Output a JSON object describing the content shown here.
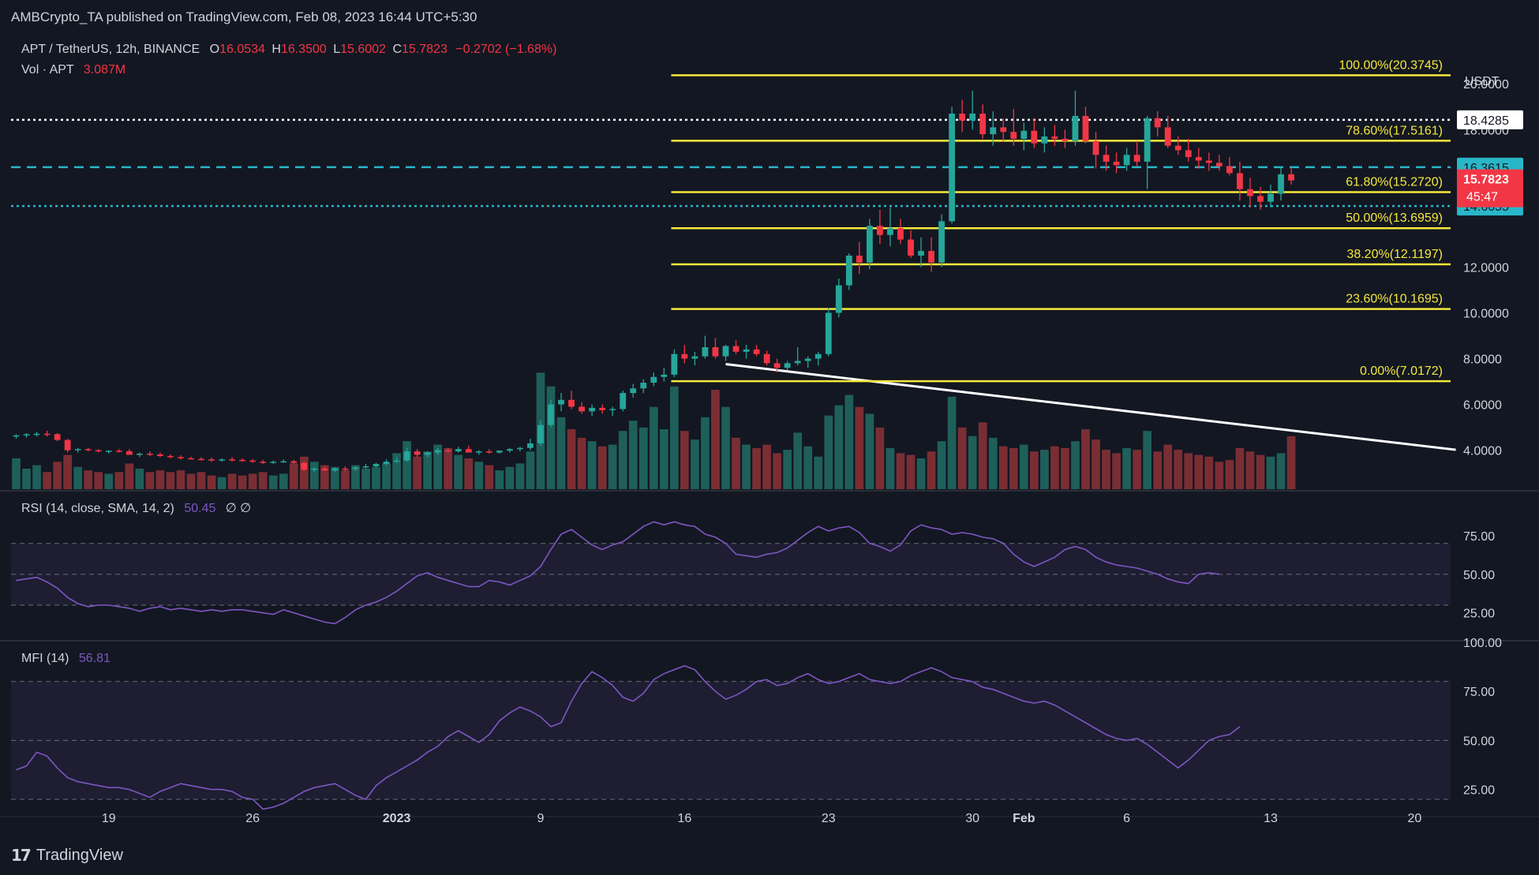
{
  "header": {
    "published": "AMBCrypto_TA published on TradingView.com, Feb 08, 2023 16:44 UTC+5:30"
  },
  "footer": {
    "brand": "TradingView"
  },
  "legend": {
    "symbol": "APT / TetherUS, 12h, BINANCE",
    "o_label": "O",
    "o_value": "16.0534",
    "h_label": "H",
    "h_value": "16.3500",
    "l_label": "L",
    "l_value": "15.6002",
    "c_label": "C",
    "c_value": "15.7823",
    "change": "−0.2702 (−1.68%)",
    "vol_label": "Vol · APT",
    "vol_value": "3.087M",
    "rsi_label": "RSI (14, close, SMA, 14, 2)",
    "rsi_value": "50.45",
    "rsi_extra": "∅  ∅",
    "mfi_label": "MFI (14)",
    "mfi_value": "56.81"
  },
  "colors": {
    "background": "#131722",
    "up": "#26a69a",
    "down": "#f23645",
    "fib": "#f5e83b",
    "cyan": "#29b6c8",
    "osc": "#7e57c2",
    "text": "#d1d4dc"
  },
  "chart_data": [
    {
      "type": "candlestick",
      "title": "APT / TetherUS, 12h, BINANCE",
      "ylabel": "USDT",
      "ylim": [
        2.3,
        21.8
      ],
      "price_axis_ticks": [
        "20.0000",
        "18.0000",
        "12.0000",
        "10.0000",
        "8.0000",
        "6.0000",
        "4.0000"
      ],
      "price_axis_values": [
        20,
        18,
        12,
        10,
        8,
        6,
        4
      ],
      "time_ticks": [
        "19",
        "26",
        "2023",
        "9",
        "16",
        "23",
        "30",
        "Feb",
        "6",
        "13",
        "20"
      ],
      "time_tick_index": [
        9,
        23,
        37,
        51,
        65,
        79,
        93,
        98,
        108,
        122,
        136
      ],
      "x_range": [
        -0.5,
        139.5
      ],
      "candles": [
        [
          4.6,
          4.7,
          4.5,
          4.65,
          1.8
        ],
        [
          4.65,
          4.75,
          4.55,
          4.7,
          1.2
        ],
        [
          4.7,
          4.8,
          4.6,
          4.72,
          1.4
        ],
        [
          4.72,
          4.85,
          4.6,
          4.7,
          1.0
        ],
        [
          4.7,
          4.75,
          4.4,
          4.45,
          1.6
        ],
        [
          4.45,
          4.5,
          3.9,
          4.0,
          2.0
        ],
        [
          4.0,
          4.1,
          3.9,
          4.05,
          1.3
        ],
        [
          4.05,
          4.1,
          3.95,
          4.0,
          1.1
        ],
        [
          4.0,
          4.05,
          3.9,
          3.95,
          1.0
        ],
        [
          3.95,
          4.0,
          3.85,
          3.98,
          0.9
        ],
        [
          3.98,
          4.05,
          3.9,
          3.96,
          1.0
        ],
        [
          3.96,
          4.05,
          3.85,
          3.8,
          1.5
        ],
        [
          3.8,
          3.9,
          3.7,
          3.85,
          1.2
        ],
        [
          3.85,
          3.95,
          3.75,
          3.82,
          1.0
        ],
        [
          3.82,
          3.9,
          3.7,
          3.75,
          1.1
        ],
        [
          3.75,
          3.82,
          3.65,
          3.7,
          1.0
        ],
        [
          3.7,
          3.78,
          3.6,
          3.65,
          1.1
        ],
        [
          3.65,
          3.72,
          3.6,
          3.62,
          0.9
        ],
        [
          3.62,
          3.7,
          3.55,
          3.6,
          1.0
        ],
        [
          3.6,
          3.68,
          3.5,
          3.55,
          0.8
        ],
        [
          3.55,
          3.65,
          3.5,
          3.6,
          0.7
        ],
        [
          3.6,
          3.7,
          3.52,
          3.58,
          0.9
        ],
        [
          3.58,
          3.65,
          3.5,
          3.55,
          0.8
        ],
        [
          3.55,
          3.62,
          3.45,
          3.5,
          0.9
        ],
        [
          3.5,
          3.58,
          3.4,
          3.45,
          1.0
        ],
        [
          3.45,
          3.55,
          3.4,
          3.5,
          0.8
        ],
        [
          3.5,
          3.6,
          3.45,
          3.52,
          0.9
        ],
        [
          3.52,
          3.58,
          3.4,
          3.45,
          1.5
        ],
        [
          3.45,
          3.5,
          3.1,
          3.15,
          1.9
        ],
        [
          3.15,
          3.25,
          3.05,
          3.2,
          1.6
        ],
        [
          3.2,
          3.3,
          3.1,
          3.12,
          1.4
        ],
        [
          3.12,
          3.25,
          3.05,
          3.2,
          1.3
        ],
        [
          3.2,
          3.3,
          3.1,
          3.18,
          1.1
        ],
        [
          3.18,
          3.3,
          3.1,
          3.25,
          1.4
        ],
        [
          3.25,
          3.4,
          3.2,
          3.3,
          1.2
        ],
        [
          3.3,
          3.45,
          3.25,
          3.4,
          1.3
        ],
        [
          3.4,
          3.6,
          3.35,
          3.5,
          1.5
        ],
        [
          3.5,
          3.7,
          3.45,
          3.55,
          2.1
        ],
        [
          3.55,
          4.1,
          3.5,
          3.95,
          2.8
        ],
        [
          3.95,
          4.05,
          3.7,
          3.8,
          1.9
        ],
        [
          3.8,
          3.95,
          3.7,
          3.9,
          2.2
        ],
        [
          3.9,
          4.1,
          3.8,
          4.0,
          2.6
        ],
        [
          4.0,
          4.1,
          3.9,
          3.95,
          2.4
        ],
        [
          3.95,
          4.15,
          3.9,
          4.05,
          2.0
        ],
        [
          4.05,
          4.2,
          3.9,
          3.9,
          1.8
        ],
        [
          3.9,
          4.0,
          3.8,
          3.95,
          1.6
        ],
        [
          3.95,
          4.05,
          3.85,
          3.9,
          1.4
        ],
        [
          3.9,
          4.0,
          3.85,
          3.98,
          1.1
        ],
        [
          3.98,
          4.1,
          3.9,
          4.05,
          1.3
        ],
        [
          4.05,
          4.15,
          3.95,
          4.1,
          1.5
        ],
        [
          4.1,
          4.5,
          4.0,
          4.3,
          2.2
        ],
        [
          4.3,
          5.3,
          4.2,
          5.1,
          6.8
        ],
        [
          5.1,
          6.2,
          5.0,
          6.0,
          6.0
        ],
        [
          6.0,
          6.5,
          5.7,
          6.2,
          4.2
        ],
        [
          6.2,
          6.6,
          5.8,
          5.9,
          3.5
        ],
        [
          5.9,
          6.1,
          5.6,
          5.7,
          3.0
        ],
        [
          5.7,
          6.0,
          5.5,
          5.85,
          2.8
        ],
        [
          5.85,
          6.0,
          5.6,
          5.75,
          2.5
        ],
        [
          5.75,
          5.9,
          5.5,
          5.8,
          2.6
        ],
        [
          5.8,
          6.6,
          5.7,
          6.5,
          3.4
        ],
        [
          6.5,
          6.9,
          6.3,
          6.7,
          4.0
        ],
        [
          6.7,
          7.1,
          6.5,
          6.95,
          3.6
        ],
        [
          6.95,
          7.4,
          6.8,
          7.2,
          4.8
        ],
        [
          7.2,
          7.6,
          7.0,
          7.3,
          3.5
        ],
        [
          7.3,
          8.4,
          7.2,
          8.2,
          6.0
        ],
        [
          8.2,
          8.6,
          7.8,
          8.0,
          3.4
        ],
        [
          8.0,
          8.3,
          7.7,
          8.1,
          2.9
        ],
        [
          8.1,
          9.0,
          8.0,
          8.5,
          4.2
        ],
        [
          8.5,
          8.9,
          8.0,
          8.1,
          5.8
        ],
        [
          8.1,
          8.6,
          7.9,
          8.55,
          4.8
        ],
        [
          8.55,
          8.8,
          8.2,
          8.3,
          3.0
        ],
        [
          8.3,
          8.6,
          8.0,
          8.4,
          2.6
        ],
        [
          8.4,
          8.6,
          8.1,
          8.2,
          2.4
        ],
        [
          8.2,
          8.35,
          7.7,
          7.8,
          2.6
        ],
        [
          7.8,
          8.0,
          7.4,
          7.6,
          2.1
        ],
        [
          7.6,
          7.9,
          7.5,
          7.8,
          2.3
        ],
        [
          7.8,
          8.5,
          7.7,
          7.9,
          3.3
        ],
        [
          7.9,
          8.1,
          7.6,
          8.0,
          2.5
        ],
        [
          8.0,
          8.3,
          7.7,
          8.2,
          1.9
        ],
        [
          8.2,
          10.2,
          8.1,
          10.0,
          4.3
        ],
        [
          10.0,
          11.5,
          9.8,
          11.2,
          4.9
        ],
        [
          11.2,
          12.6,
          11.0,
          12.5,
          5.5
        ],
        [
          12.5,
          13.1,
          11.7,
          12.2,
          4.8
        ],
        [
          12.2,
          14.1,
          11.9,
          13.8,
          4.4
        ],
        [
          13.8,
          14.5,
          13.0,
          13.4,
          3.6
        ],
        [
          13.4,
          14.6,
          12.9,
          13.7,
          2.4
        ],
        [
          13.7,
          14.1,
          13.0,
          13.2,
          2.1
        ],
        [
          13.2,
          13.6,
          12.4,
          12.5,
          2.0
        ],
        [
          12.5,
          13.3,
          12.0,
          12.7,
          1.8
        ],
        [
          12.7,
          13.3,
          11.8,
          12.2,
          2.2
        ],
        [
          12.2,
          14.3,
          12.0,
          14.0,
          2.8
        ],
        [
          14.0,
          19.0,
          13.9,
          18.7,
          5.4
        ],
        [
          18.7,
          19.3,
          17.9,
          18.4,
          3.6
        ],
        [
          18.4,
          19.7,
          18.0,
          18.7,
          3.1
        ],
        [
          18.7,
          19.1,
          17.6,
          17.8,
          3.9
        ],
        [
          17.8,
          18.8,
          17.3,
          18.1,
          3.0
        ],
        [
          18.1,
          18.5,
          17.5,
          17.9,
          2.5
        ],
        [
          17.9,
          18.9,
          17.3,
          17.6,
          2.4
        ],
        [
          17.6,
          18.3,
          17.1,
          17.95,
          2.6
        ],
        [
          17.95,
          18.5,
          17.2,
          17.4,
          2.2
        ],
        [
          17.4,
          18.1,
          17.0,
          17.7,
          2.3
        ],
        [
          17.7,
          18.2,
          17.3,
          17.6,
          2.5
        ],
        [
          17.6,
          18.0,
          17.2,
          17.5,
          2.4
        ],
        [
          17.5,
          19.7,
          17.3,
          18.6,
          2.8
        ],
        [
          18.6,
          19.0,
          17.4,
          17.5,
          3.5
        ],
        [
          17.5,
          17.9,
          16.3,
          16.9,
          2.9
        ],
        [
          16.9,
          17.3,
          16.2,
          16.6,
          2.3
        ],
        [
          16.6,
          17.0,
          16.1,
          16.45,
          2.1
        ],
        [
          16.45,
          17.2,
          16.2,
          16.9,
          2.4
        ],
        [
          16.9,
          17.5,
          16.4,
          16.6,
          2.3
        ],
        [
          16.6,
          18.6,
          15.4,
          18.5,
          3.4
        ],
        [
          18.5,
          18.8,
          17.7,
          18.1,
          2.2
        ],
        [
          18.1,
          18.6,
          17.2,
          17.3,
          2.6
        ],
        [
          17.3,
          17.7,
          16.9,
          17.1,
          2.3
        ],
        [
          17.1,
          17.6,
          16.6,
          16.8,
          2.1
        ],
        [
          16.8,
          17.2,
          16.3,
          16.65,
          2.0
        ],
        [
          16.65,
          17.0,
          16.2,
          16.55,
          1.9
        ],
        [
          16.55,
          16.9,
          16.2,
          16.4,
          1.6
        ],
        [
          16.4,
          16.8,
          16.0,
          16.1,
          1.7
        ],
        [
          16.1,
          16.6,
          14.9,
          15.4,
          2.4
        ],
        [
          15.4,
          15.9,
          14.6,
          15.1,
          2.2
        ],
        [
          15.1,
          15.5,
          14.5,
          14.85,
          2.0
        ],
        [
          14.85,
          15.6,
          14.6,
          15.2,
          1.9
        ],
        [
          15.2,
          16.4,
          14.9,
          16.05,
          2.1
        ],
        [
          16.05,
          16.35,
          15.6,
          15.78,
          3.09
        ]
      ],
      "volume_range_M": [
        0,
        7.6
      ],
      "trendline_volume_M": [
        [
          69,
          7.3
        ],
        [
          140,
          2.3
        ]
      ]
    },
    {
      "type": "line",
      "name": "RSI (14, close, SMA, 14, 2)",
      "ylim": [
        8,
        100
      ],
      "ticks": [
        "75.00",
        "50.00",
        "25.00"
      ],
      "tick_values": [
        75,
        50,
        25
      ],
      "band": [
        30,
        70
      ],
      "midline": 50,
      "values": [
        46,
        47,
        48,
        45,
        41,
        35,
        31,
        29,
        30,
        30,
        29,
        28,
        26,
        28,
        29,
        27,
        28,
        27,
        26,
        27,
        26,
        27,
        27,
        26,
        25,
        24,
        27,
        25,
        23,
        21,
        19,
        18,
        22,
        27,
        30,
        32,
        35,
        39,
        44,
        49,
        51,
        48,
        46,
        44,
        42,
        42,
        46,
        45,
        43,
        46,
        49,
        55,
        66,
        76,
        79,
        74,
        69,
        66,
        69,
        71,
        76,
        81,
        84,
        82,
        84,
        82,
        81,
        76,
        74,
        70,
        63,
        62,
        61,
        63,
        64,
        67,
        72,
        77,
        81,
        78,
        80,
        81,
        77,
        70,
        68,
        65,
        69,
        78,
        82,
        80,
        79,
        76,
        77,
        76,
        74,
        73,
        70,
        63,
        58,
        55,
        58,
        61,
        66,
        68,
        66,
        61,
        58,
        56,
        55,
        54,
        52,
        50,
        47,
        45,
        44,
        50,
        51,
        50
      ]
    },
    {
      "type": "line",
      "name": "MFI (14)",
      "ylim": [
        12,
        100
      ],
      "ticks": [
        "100.00",
        "75.00",
        "50.00",
        "25.00"
      ],
      "tick_values": [
        100,
        75,
        50,
        25
      ],
      "band": [
        20,
        80
      ],
      "midline": 50,
      "values": [
        35,
        37,
        44,
        42,
        36,
        31,
        29,
        28,
        27,
        26,
        26,
        25,
        23,
        21,
        24,
        26,
        28,
        27,
        26,
        25,
        25,
        24,
        21,
        20,
        15,
        16,
        18,
        21,
        24,
        26,
        27,
        28,
        25,
        22,
        20,
        27,
        31,
        34,
        37,
        40,
        44,
        47,
        52,
        55,
        52,
        49,
        53,
        60,
        64,
        67,
        65,
        62,
        57,
        59,
        70,
        79,
        85,
        82,
        78,
        72,
        70,
        74,
        81,
        84,
        86,
        88,
        86,
        80,
        75,
        71,
        73,
        76,
        80,
        81,
        78,
        79,
        82,
        84,
        81,
        79,
        80,
        82,
        84,
        81,
        80,
        79,
        80,
        83,
        85,
        87,
        85,
        82,
        81,
        80,
        77,
        76,
        74,
        72,
        70,
        69,
        70,
        68,
        65,
        62,
        59,
        56,
        53,
        51,
        50,
        51,
        48,
        44,
        40,
        36,
        40,
        45,
        50,
        52,
        53,
        57
      ]
    }
  ],
  "fib": {
    "levels": [
      {
        "label": "100.00%(20.3745)",
        "value": 20.3745
      },
      {
        "label": "78.60%(17.5161)",
        "value": 17.5161
      },
      {
        "label": "61.80%(15.2720)",
        "value": 15.272
      },
      {
        "label": "50.00%(13.6959)",
        "value": 13.6959
      },
      {
        "label": "38.20%(12.1197)",
        "value": 12.1197
      },
      {
        "label": "23.60%(10.1695)",
        "value": 10.1695
      },
      {
        "label": "0.00%(7.0172)",
        "value": 7.0172
      }
    ],
    "start_index": 63.7
  },
  "hlines": [
    {
      "value": 18.4285,
      "label": "18.4285",
      "style": "dotted",
      "color": "#ffffff"
    },
    {
      "value": 16.3615,
      "label": "16.3615",
      "style": "dashed",
      "color": "#29b6c8"
    },
    {
      "value": 14.6655,
      "label": "14.6655",
      "style": "dotted",
      "color": "#29b6c8"
    }
  ],
  "last_price": {
    "label": "15.7823",
    "countdown": "45:47",
    "value": 15.7823
  }
}
